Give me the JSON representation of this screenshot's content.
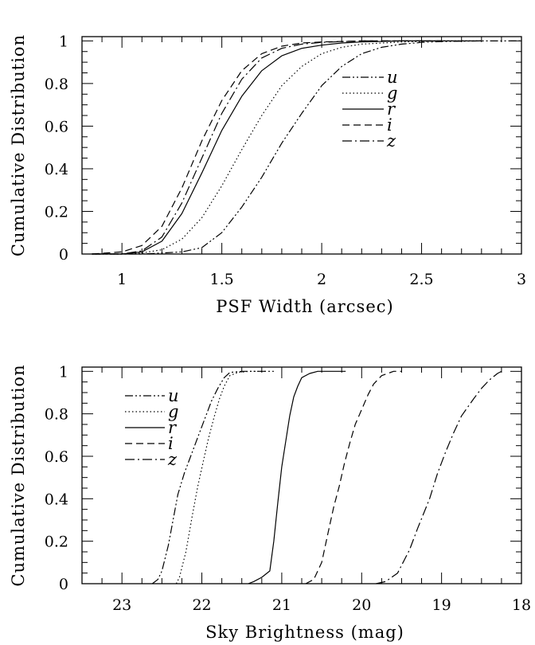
{
  "chart_data": [
    {
      "type": "line",
      "xlabel": "PSF Width (arcsec)",
      "ylabel": "Cumulative Distribution",
      "xlim": [
        0.8,
        3.0
      ],
      "ylim": [
        0,
        1.02
      ],
      "xticks": [
        "1",
        "1.5",
        "2",
        "2.5",
        "3"
      ],
      "yticks": [
        "0",
        "0.2",
        "0.4",
        "0.6",
        "0.8",
        "1"
      ],
      "legend_position": "top-right",
      "series": [
        {
          "name": "u",
          "dash": "dashdotdot",
          "x": [
            0.85,
            1.0,
            1.1,
            1.2,
            1.3,
            1.4,
            1.5,
            1.6,
            1.7,
            1.8,
            1.9,
            2.0,
            2.1,
            2.2,
            2.3,
            2.4,
            2.5,
            2.6,
            2.8,
            3.0
          ],
          "y": [
            0,
            0,
            0,
            0.005,
            0.01,
            0.03,
            0.1,
            0.22,
            0.36,
            0.52,
            0.66,
            0.79,
            0.88,
            0.94,
            0.97,
            0.985,
            0.993,
            0.997,
            1.0,
            1.0
          ]
        },
        {
          "name": "g",
          "dash": "dotted",
          "x": [
            0.85,
            1.0,
            1.1,
            1.2,
            1.3,
            1.4,
            1.5,
            1.6,
            1.7,
            1.8,
            1.9,
            2.0,
            2.1,
            2.2,
            2.4,
            2.6,
            2.8
          ],
          "y": [
            0,
            0,
            0.005,
            0.02,
            0.07,
            0.17,
            0.32,
            0.49,
            0.65,
            0.79,
            0.88,
            0.94,
            0.97,
            0.985,
            0.995,
            1.0,
            1.0
          ]
        },
        {
          "name": "r",
          "dash": "solid",
          "x": [
            0.85,
            1.0,
            1.1,
            1.2,
            1.3,
            1.4,
            1.5,
            1.6,
            1.7,
            1.8,
            1.9,
            2.0,
            2.1,
            2.2,
            2.4,
            2.6,
            2.8
          ],
          "y": [
            0,
            0,
            0.01,
            0.06,
            0.19,
            0.38,
            0.58,
            0.74,
            0.86,
            0.93,
            0.965,
            0.98,
            0.99,
            0.995,
            1.0,
            1.0,
            1.0
          ]
        },
        {
          "name": "i",
          "dash": "dashed",
          "x": [
            0.85,
            1.0,
            1.1,
            1.2,
            1.3,
            1.4,
            1.5,
            1.6,
            1.7,
            1.8,
            1.9,
            2.0,
            2.2,
            2.4,
            2.6
          ],
          "y": [
            0,
            0.01,
            0.04,
            0.13,
            0.31,
            0.53,
            0.72,
            0.86,
            0.94,
            0.975,
            0.99,
            0.995,
            1.0,
            1.0,
            1.0
          ]
        },
        {
          "name": "z",
          "dash": "dashdot",
          "x": [
            0.85,
            1.0,
            1.1,
            1.2,
            1.3,
            1.4,
            1.5,
            1.6,
            1.7,
            1.8,
            1.9,
            2.0,
            2.2,
            2.4,
            2.6
          ],
          "y": [
            0,
            0,
            0.015,
            0.08,
            0.24,
            0.45,
            0.66,
            0.82,
            0.92,
            0.965,
            0.985,
            0.993,
            1.0,
            1.0,
            1.0
          ]
        }
      ]
    },
    {
      "type": "line",
      "xlabel": "Sky Brightness (mag)",
      "ylabel": "Cumulative Distribution",
      "xlim": [
        23.5,
        18.0
      ],
      "ylim": [
        0,
        1.02
      ],
      "xticks": [
        "23",
        "22",
        "21",
        "20",
        "19",
        "18"
      ],
      "yticks": [
        "0",
        "0.2",
        "0.4",
        "0.6",
        "0.8",
        "1"
      ],
      "legend_position": "top-left",
      "series": [
        {
          "name": "u",
          "dash": "dashdotdot",
          "x": [
            22.62,
            22.55,
            22.5,
            22.42,
            22.35,
            22.3,
            22.22,
            22.12,
            22.02,
            21.95,
            21.88,
            21.8,
            21.72,
            21.65,
            21.5,
            21.3,
            21.1
          ],
          "y": [
            0,
            0.02,
            0.06,
            0.18,
            0.32,
            0.42,
            0.52,
            0.62,
            0.72,
            0.79,
            0.86,
            0.92,
            0.97,
            0.995,
            1.0,
            1.0,
            1.0
          ]
        },
        {
          "name": "g",
          "dash": "dotted",
          "x": [
            22.32,
            22.28,
            22.2,
            22.12,
            22.05,
            21.98,
            21.92,
            21.85,
            21.78,
            21.72,
            21.65,
            21.55,
            21.4,
            21.2
          ],
          "y": [
            0,
            0.03,
            0.15,
            0.32,
            0.46,
            0.58,
            0.68,
            0.78,
            0.87,
            0.93,
            0.98,
            0.995,
            1.0,
            1.0
          ]
        },
        {
          "name": "r",
          "dash": "solid",
          "x": [
            21.42,
            21.35,
            21.25,
            21.15,
            21.1,
            21.05,
            21.0,
            20.95,
            20.9,
            20.85,
            20.8,
            20.75,
            20.65,
            20.55,
            20.4,
            20.2
          ],
          "y": [
            0,
            0.01,
            0.03,
            0.06,
            0.2,
            0.38,
            0.55,
            0.67,
            0.79,
            0.88,
            0.93,
            0.97,
            0.99,
            1.0,
            1.0,
            1.0
          ]
        },
        {
          "name": "i",
          "dash": "dashed",
          "x": [
            20.7,
            20.6,
            20.5,
            20.42,
            20.35,
            20.28,
            20.22,
            20.15,
            20.08,
            20.0,
            19.92,
            19.85,
            19.75,
            19.6,
            19.5
          ],
          "y": [
            0,
            0.02,
            0.1,
            0.24,
            0.36,
            0.46,
            0.56,
            0.66,
            0.75,
            0.82,
            0.89,
            0.94,
            0.98,
            1.0,
            1.0
          ]
        },
        {
          "name": "z",
          "dash": "dashdot",
          "x": [
            19.82,
            19.7,
            19.55,
            19.4,
            19.3,
            19.15,
            19.05,
            18.95,
            18.85,
            18.75,
            18.6,
            18.5,
            18.4,
            18.3,
            18.25
          ],
          "y": [
            0,
            0.01,
            0.05,
            0.16,
            0.26,
            0.4,
            0.52,
            0.62,
            0.71,
            0.79,
            0.87,
            0.92,
            0.96,
            0.99,
            1.0
          ]
        }
      ]
    }
  ]
}
